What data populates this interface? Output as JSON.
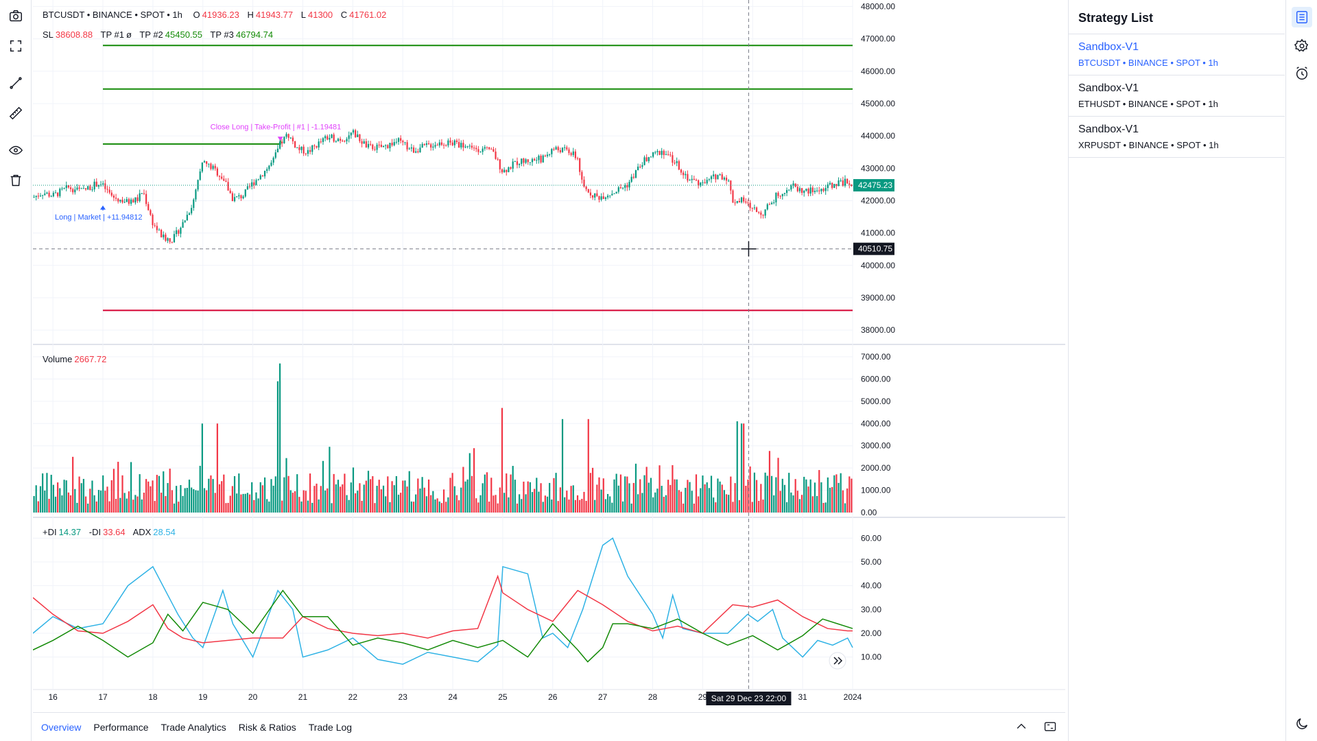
{
  "symbol_header": {
    "title": "BTCUSDT • BINANCE • SPOT • 1h",
    "o_label": "O",
    "o_value": "41936.23",
    "h_label": "H",
    "h_value": "41943.77",
    "l_label": "L",
    "l_value": "41300",
    "c_label": "C",
    "c_value": "41761.02"
  },
  "levels_legend": {
    "sl_label": "SL",
    "sl_value": "38608.88",
    "tp1_label": "TP #1",
    "tp1_value": "ø",
    "tp2_label": "TP #2",
    "tp2_value": "45450.55",
    "tp3_label": "TP #3",
    "tp3_value": "46794.74"
  },
  "annotations": {
    "long_entry": "Long | Market | +11.94812",
    "close_long": "Close Long | Take-Profit | #1 | -1.19481"
  },
  "price_axis": {
    "ticks": [
      "48000.00",
      "47000.00",
      "46000.00",
      "45000.00",
      "44000.00",
      "43000.00",
      "42000.00",
      "41000.00",
      "40000.00",
      "39000.00",
      "38000.00"
    ],
    "last_price_label": "42475.23",
    "crosshair_price_label": "40510.75"
  },
  "volume_legend": {
    "label": "Volume",
    "value": "2667.72"
  },
  "volume_axis": {
    "ticks": [
      "7000.00",
      "6000.00",
      "5000.00",
      "4000.00",
      "3000.00",
      "2000.00",
      "1000.00",
      "0.00"
    ]
  },
  "dmi_legend": {
    "pdi_label": "+DI",
    "pdi_value": "14.37",
    "mdi_label": "-DI",
    "mdi_value": "33.64",
    "adx_label": "ADX",
    "adx_value": "28.54"
  },
  "dmi_axis": {
    "ticks": [
      "60.00",
      "50.00",
      "40.00",
      "30.00",
      "20.00",
      "10.00"
    ]
  },
  "time_axis": {
    "ticks": [
      "16",
      "17",
      "18",
      "19",
      "20",
      "21",
      "22",
      "23",
      "24",
      "25",
      "26",
      "27",
      "28",
      "29",
      "31",
      "2024"
    ],
    "crosshair_label": "Sat 29 Dec 23  22:00"
  },
  "chart_data": {
    "type": "candlestick",
    "interval": "1h",
    "price_range": [
      37600,
      48200
    ],
    "levels": {
      "sl": 38608.88,
      "tp2": 45450.55,
      "tp3": 46794.74,
      "entry": 43750
    },
    "price_path": [
      [
        15.6,
        42100
      ],
      [
        15.8,
        42250
      ],
      [
        16,
        42150
      ],
      [
        16.3,
        42400
      ],
      [
        16.6,
        42300
      ],
      [
        16.9,
        42550
      ],
      [
        17.0,
        42450
      ],
      [
        17.2,
        42100
      ],
      [
        17.5,
        41950
      ],
      [
        17.7,
        42050
      ],
      [
        17.8,
        42300
      ],
      [
        18.0,
        41300
      ],
      [
        18.2,
        40850
      ],
      [
        18.4,
        40800
      ],
      [
        18.6,
        41300
      ],
      [
        18.8,
        41900
      ],
      [
        19.0,
        43200
      ],
      [
        19.2,
        43000
      ],
      [
        19.4,
        42700
      ],
      [
        19.6,
        42050
      ],
      [
        19.8,
        42150
      ],
      [
        20.0,
        42550
      ],
      [
        20.2,
        42850
      ],
      [
        20.4,
        43200
      ],
      [
        20.55,
        43750
      ],
      [
        20.7,
        44050
      ],
      [
        20.9,
        43600
      ],
      [
        21.1,
        43500
      ],
      [
        21.3,
        43750
      ],
      [
        21.5,
        43950
      ],
      [
        21.8,
        43900
      ],
      [
        22.0,
        44100
      ],
      [
        22.3,
        43650
      ],
      [
        22.6,
        43650
      ],
      [
        22.9,
        43850
      ],
      [
        23.2,
        43550
      ],
      [
        23.5,
        43700
      ],
      [
        23.8,
        43800
      ],
      [
        24.1,
        43750
      ],
      [
        24.4,
        43650
      ],
      [
        24.8,
        43500
      ],
      [
        25.0,
        42900
      ],
      [
        25.3,
        43200
      ],
      [
        25.6,
        43250
      ],
      [
        25.8,
        43300
      ],
      [
        26.0,
        43600
      ],
      [
        26.3,
        43550
      ],
      [
        26.5,
        43300
      ],
      [
        26.6,
        42400
      ],
      [
        26.9,
        42100
      ],
      [
        27.2,
        42250
      ],
      [
        27.5,
        42500
      ],
      [
        27.8,
        43200
      ],
      [
        28.0,
        43400
      ],
      [
        28.2,
        43550
      ],
      [
        28.5,
        43100
      ],
      [
        28.7,
        42700
      ],
      [
        29.0,
        42500
      ],
      [
        29.3,
        42800
      ],
      [
        29.5,
        42700
      ],
      [
        29.6,
        42000
      ],
      [
        29.8,
        42000
      ],
      [
        30.0,
        41750
      ],
      [
        30.2,
        41600
      ],
      [
        30.5,
        42200
      ],
      [
        30.8,
        42450
      ],
      [
        31.0,
        42300
      ],
      [
        31.3,
        42300
      ],
      [
        31.6,
        42500
      ],
      [
        31.9,
        42600
      ],
      [
        32.0,
        42400
      ]
    ],
    "volume_range": [
      0,
      7000
    ],
    "volume_spikes": [
      [
        20.55,
        6700
      ],
      [
        20.5,
        5900
      ],
      [
        25.0,
        4700
      ],
      [
        26.2,
        4200
      ],
      [
        26.7,
        4200
      ],
      [
        29.7,
        4100
      ],
      [
        29.8,
        4000
      ],
      [
        19.3,
        4000
      ],
      [
        19.0,
        4000
      ]
    ],
    "dmi_range": [
      5,
      65
    ],
    "dmi_plus": [
      [
        15.6,
        13
      ],
      [
        16.0,
        17
      ],
      [
        16.5,
        23
      ],
      [
        17.0,
        17
      ],
      [
        17.5,
        10
      ],
      [
        18.0,
        16
      ],
      [
        18.3,
        28
      ],
      [
        18.6,
        21
      ],
      [
        19.0,
        33
      ],
      [
        19.5,
        30
      ],
      [
        20.0,
        20
      ],
      [
        20.6,
        38
      ],
      [
        21.0,
        27
      ],
      [
        21.5,
        27
      ],
      [
        22.0,
        15
      ],
      [
        22.5,
        18
      ],
      [
        23.0,
        16
      ],
      [
        23.5,
        13
      ],
      [
        24.0,
        17
      ],
      [
        24.5,
        14
      ],
      [
        25.0,
        17
      ],
      [
        25.5,
        10
      ],
      [
        26.0,
        24
      ],
      [
        26.5,
        13
      ],
      [
        26.7,
        8
      ],
      [
        27.0,
        14
      ],
      [
        27.2,
        24
      ],
      [
        27.5,
        24
      ],
      [
        28.0,
        22
      ],
      [
        28.5,
        26
      ],
      [
        29.0,
        20
      ],
      [
        29.5,
        15
      ],
      [
        30.0,
        19
      ],
      [
        30.5,
        13
      ],
      [
        31.0,
        19
      ],
      [
        31.4,
        26
      ],
      [
        31.7,
        24
      ],
      [
        32.0,
        22
      ]
    ],
    "dmi_minus": [
      [
        15.6,
        35
      ],
      [
        16.0,
        28
      ],
      [
        16.5,
        21
      ],
      [
        17.0,
        20
      ],
      [
        17.5,
        25
      ],
      [
        18.0,
        32
      ],
      [
        18.3,
        22
      ],
      [
        18.6,
        18
      ],
      [
        19.0,
        16
      ],
      [
        19.5,
        17
      ],
      [
        20.0,
        18
      ],
      [
        20.6,
        18
      ],
      [
        21.0,
        27
      ],
      [
        21.5,
        22
      ],
      [
        22.0,
        20
      ],
      [
        22.5,
        19
      ],
      [
        23.0,
        20
      ],
      [
        23.5,
        18
      ],
      [
        24.0,
        21
      ],
      [
        24.5,
        22
      ],
      [
        24.9,
        44
      ],
      [
        25.0,
        37
      ],
      [
        25.5,
        30
      ],
      [
        26.0,
        25
      ],
      [
        26.5,
        38
      ],
      [
        27.0,
        32
      ],
      [
        27.5,
        25
      ],
      [
        28.0,
        21
      ],
      [
        28.5,
        23
      ],
      [
        29.0,
        20
      ],
      [
        29.6,
        32
      ],
      [
        30.0,
        31
      ],
      [
        30.5,
        34
      ],
      [
        31.0,
        27
      ],
      [
        31.5,
        22
      ],
      [
        31.9,
        21
      ],
      [
        32.0,
        21
      ]
    ],
    "adx": [
      [
        15.6,
        20
      ],
      [
        16.0,
        27
      ],
      [
        16.5,
        22
      ],
      [
        17.0,
        24
      ],
      [
        17.5,
        40
      ],
      [
        18.0,
        48
      ],
      [
        18.5,
        28
      ],
      [
        18.8,
        18
      ],
      [
        19.0,
        14
      ],
      [
        19.4,
        38
      ],
      [
        19.6,
        24
      ],
      [
        20.0,
        10
      ],
      [
        20.5,
        38
      ],
      [
        20.8,
        30
      ],
      [
        21.0,
        10
      ],
      [
        21.5,
        13
      ],
      [
        22.0,
        18
      ],
      [
        22.5,
        9
      ],
      [
        23.0,
        7
      ],
      [
        23.5,
        12
      ],
      [
        24.0,
        10
      ],
      [
        24.5,
        8
      ],
      [
        24.9,
        15
      ],
      [
        25.0,
        48
      ],
      [
        25.5,
        45
      ],
      [
        25.8,
        18
      ],
      [
        26.0,
        20
      ],
      [
        26.3,
        14
      ],
      [
        26.6,
        30
      ],
      [
        27.0,
        57
      ],
      [
        27.2,
        60
      ],
      [
        27.5,
        44
      ],
      [
        28.0,
        28
      ],
      [
        28.2,
        18
      ],
      [
        28.4,
        36
      ],
      [
        28.6,
        22
      ],
      [
        29.0,
        20
      ],
      [
        29.5,
        20
      ],
      [
        29.9,
        28
      ],
      [
        30.1,
        25
      ],
      [
        30.4,
        30
      ],
      [
        30.6,
        18
      ],
      [
        31.0,
        10
      ],
      [
        31.3,
        17
      ],
      [
        31.6,
        15
      ],
      [
        31.9,
        18
      ],
      [
        32.0,
        14
      ]
    ]
  },
  "bottom_tabs": [
    "Overview",
    "Performance",
    "Trade Analytics",
    "Risk & Ratios",
    "Trade Log"
  ],
  "strategy_panel": {
    "title": "Strategy List",
    "items": [
      {
        "name": "Sandbox-V1",
        "symbol": "BTCUSDT • BINANCE • SPOT • 1h"
      },
      {
        "name": "Sandbox-V1",
        "symbol": "ETHUSDT • BINANCE • SPOT • 1h"
      },
      {
        "name": "Sandbox-V1",
        "symbol": "XRPUSDT • BINANCE • SPOT • 1h"
      }
    ]
  },
  "colors": {
    "bull": "#089981",
    "bear": "#f23645",
    "tp": "#138a07",
    "sl": "#d50032",
    "adx": "#2eb2e5",
    "accent": "#2962ff"
  }
}
